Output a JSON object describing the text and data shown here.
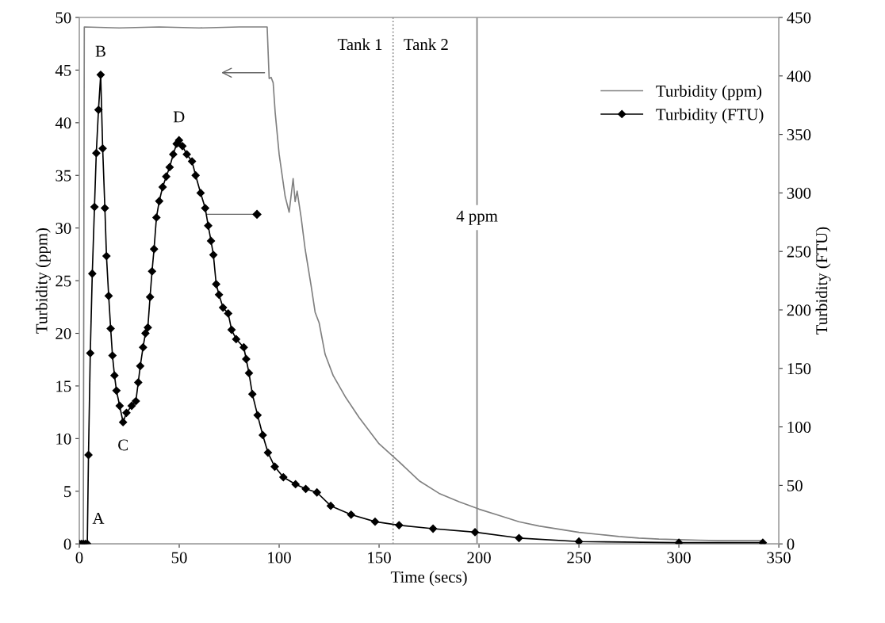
{
  "chart_data": {
    "type": "line",
    "xlabel": "Time (secs)",
    "ylabel": "Turbidity (ppm)",
    "y2label": "Turbidity (FTU)",
    "xlim": [
      0,
      350
    ],
    "xticks": [
      0,
      50,
      100,
      150,
      200,
      250,
      300,
      350
    ],
    "ylim": [
      0,
      50
    ],
    "yticks": [
      0,
      5,
      10,
      15,
      20,
      25,
      30,
      35,
      40,
      45,
      50
    ],
    "y2lim": [
      0,
      450
    ],
    "y2ticks": [
      0,
      50,
      100,
      150,
      200,
      250,
      300,
      350,
      400,
      450
    ],
    "grid": false,
    "legend": "top right",
    "series": [
      {
        "name": "Turbidity (ppm)",
        "color": "#808080",
        "marker": "none",
        "x": [
          0,
          2,
          2.5,
          20,
          40,
          60,
          80,
          94,
          95,
          96,
          97,
          98,
          100,
          103,
          105,
          107,
          108,
          109,
          111,
          113,
          116,
          118,
          120,
          123,
          127,
          133,
          140,
          150,
          160,
          170,
          180,
          190,
          200,
          210,
          220,
          230,
          240,
          250,
          260,
          270,
          280,
          290,
          300,
          310,
          320,
          330,
          342
        ],
        "values": [
          0,
          0,
          49.1,
          49.0,
          49.1,
          49.0,
          49.1,
          49.1,
          44.2,
          44.3,
          43.8,
          41,
          37,
          33,
          31.5,
          34.7,
          32.5,
          33.5,
          31,
          28,
          24.5,
          22,
          21,
          18,
          16,
          14,
          12,
          9.5,
          7.8,
          6,
          4.8,
          4,
          3.3,
          2.7,
          2.1,
          1.7,
          1.4,
          1.1,
          0.9,
          0.7,
          0.55,
          0.45,
          0.4,
          0.35,
          0.3,
          0.3,
          0.3
        ]
      },
      {
        "name": "Turbidity (FTU)",
        "color": "#000000",
        "marker": "diamond",
        "axis": "y2",
        "x": [
          0,
          1,
          2,
          3,
          4,
          4.6,
          5.5,
          6.5,
          7.6,
          8.5,
          9.6,
          10.7,
          11.7,
          12.8,
          13.6,
          14.7,
          15.7,
          16.6,
          17.6,
          18.6,
          20.2,
          21.9,
          23.6,
          26.2,
          28.3,
          29.5,
          30.5,
          31.9,
          33.1,
          34.3,
          35.4,
          36.4,
          37.4,
          38.6,
          40,
          41.7,
          43.5,
          45.2,
          47,
          48.7,
          49.9,
          51.6,
          53.8,
          56.4,
          58.2,
          60.7,
          63,
          64.5,
          65.9,
          67.1,
          68.5,
          69.9,
          71.9,
          74.5,
          76.2,
          78.5,
          82.3,
          83.5,
          84.9,
          86.6,
          89.2,
          91.8,
          94.4,
          97.8,
          102.1,
          108.2,
          113.3,
          118.9,
          125.8,
          136,
          148,
          160,
          177,
          198,
          220,
          250,
          300,
          342
        ],
        "values": [
          0,
          0,
          0,
          0,
          0,
          76,
          163,
          231,
          288,
          334,
          371,
          401,
          338,
          287,
          246,
          212,
          184,
          161,
          144,
          131,
          118,
          104,
          112,
          118,
          122,
          138,
          152,
          168,
          180,
          185,
          211,
          233,
          252,
          279,
          293,
          305,
          314,
          322,
          333,
          342,
          345,
          340,
          333,
          327,
          315,
          300,
          287,
          272,
          259,
          247,
          222,
          213,
          202,
          197,
          183,
          175,
          168,
          158,
          146,
          128,
          110,
          93,
          78,
          66,
          57,
          51,
          47,
          44,
          32.5,
          25,
          19,
          16,
          13,
          10,
          5,
          2,
          1,
          1
        ]
      }
    ],
    "ref_lines": [
      {
        "axis": "x",
        "value": 157,
        "color": "#808080",
        "line_style": "dotted"
      },
      {
        "axis": "x",
        "value": 199,
        "label": "4 ppm",
        "color": "#808080",
        "line_style": "solid"
      }
    ],
    "annotations": [
      {
        "text": "A",
        "x": 4,
        "y": 0
      },
      {
        "text": "B",
        "x": 10.7,
        "y": 44.56
      },
      {
        "text": "C",
        "x": 21.9,
        "y": 11.56
      },
      {
        "text": "D",
        "x": 49.9,
        "y": 38.33
      },
      {
        "text": "Tank 1",
        "x": 157,
        "y": 47.3
      },
      {
        "text": "Tank 2",
        "x": 157,
        "y": 47.3
      }
    ]
  }
}
